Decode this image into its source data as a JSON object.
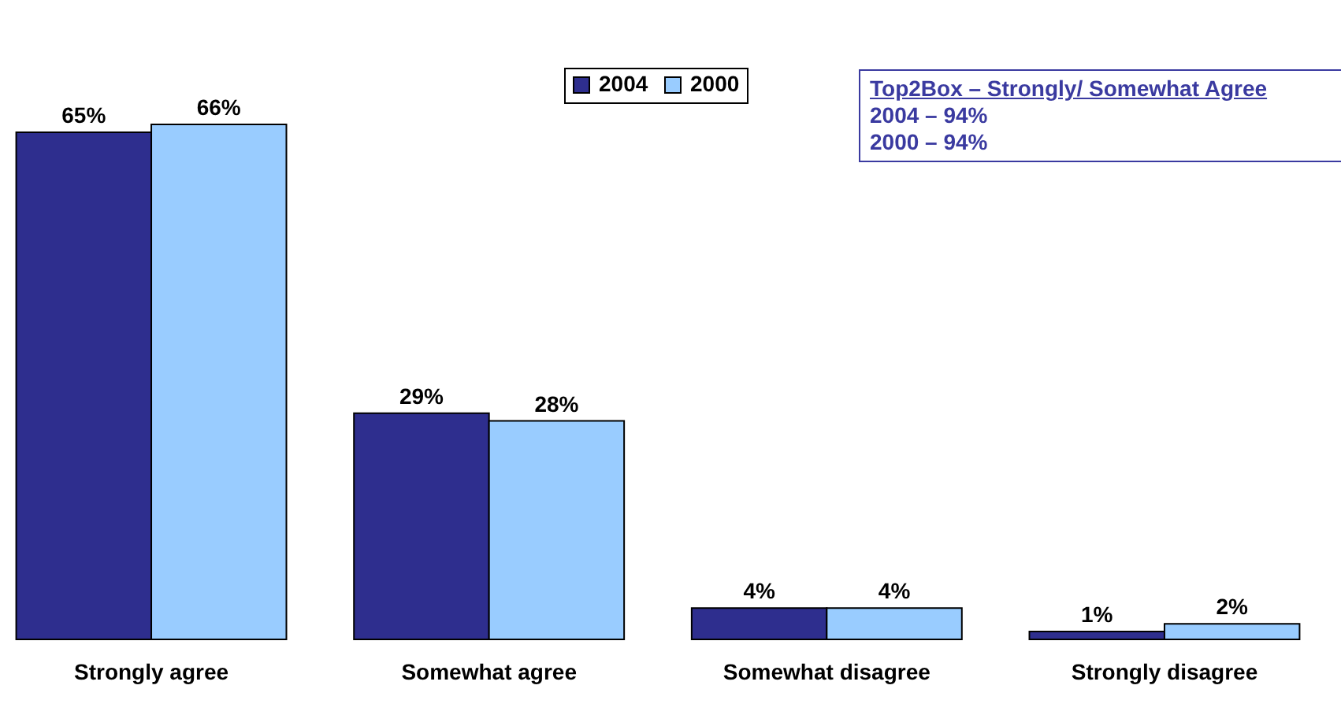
{
  "chart_data": {
    "type": "bar",
    "categories": [
      "Strongly agree",
      "Somewhat agree",
      "Somewhat disagree",
      "Strongly disagree"
    ],
    "series": [
      {
        "name": "2004",
        "color": "#2e2e8e",
        "values": [
          65,
          29,
          4,
          1
        ],
        "value_labels": [
          "65%",
          "29%",
          "4%",
          "1%"
        ]
      },
      {
        "name": "2000",
        "color": "#99ccff",
        "values": [
          66,
          28,
          4,
          2
        ],
        "value_labels": [
          "66%",
          "28%",
          "4%",
          "2%"
        ]
      }
    ],
    "annotations": [
      "Top2Box – Strongly/ Somewhat Agree",
      "2004 – 94%",
      "2000 – 94%"
    ],
    "legend": "top"
  }
}
